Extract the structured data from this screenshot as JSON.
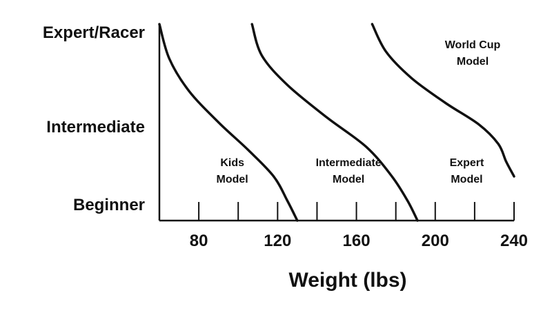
{
  "chart_data": {
    "type": "line",
    "title": "",
    "xlabel": "Weight (lbs)",
    "ylabel": "",
    "xlim": [
      60,
      240
    ],
    "x_tick_labels": [
      "80",
      "120",
      "160",
      "200",
      "240"
    ],
    "x_tick_values": [
      80,
      120,
      160,
      200,
      240
    ],
    "minor_ticks": [
      80,
      100,
      120,
      140,
      160,
      180,
      200,
      220,
      240
    ],
    "y_levels": [
      "Beginner",
      "Intermediate",
      "Expert/Racer"
    ],
    "y_level_values": [
      0,
      1,
      2
    ],
    "ylim": [
      0,
      2
    ],
    "grid": false,
    "series": [
      {
        "x": [
          60,
          65,
          75,
          90,
          105,
          118,
          125,
          130
        ],
        "y": [
          2.0,
          1.65,
          1.32,
          1.0,
          0.72,
          0.45,
          0.2,
          0.0
        ]
      },
      {
        "x": [
          107,
          112,
          125,
          145,
          165,
          178,
          186,
          191
        ],
        "y": [
          2.0,
          1.68,
          1.38,
          1.05,
          0.75,
          0.45,
          0.2,
          0.0
        ]
      },
      {
        "x": [
          168,
          175,
          188,
          205,
          222,
          232,
          236,
          240
        ],
        "y": [
          2.0,
          1.72,
          1.45,
          1.2,
          0.98,
          0.78,
          0.6,
          0.45
        ]
      }
    ],
    "annotations": [
      {
        "lines": [
          "Kids",
          "Model"
        ],
        "x": 97,
        "y": 0.5
      },
      {
        "lines": [
          "Intermediate",
          "Model"
        ],
        "x": 156,
        "y": 0.5
      },
      {
        "lines": [
          "Expert",
          "Model"
        ],
        "x": 216,
        "y": 0.5
      },
      {
        "lines": [
          "World Cup",
          "Model"
        ],
        "x": 219,
        "y": 1.7
      }
    ]
  }
}
